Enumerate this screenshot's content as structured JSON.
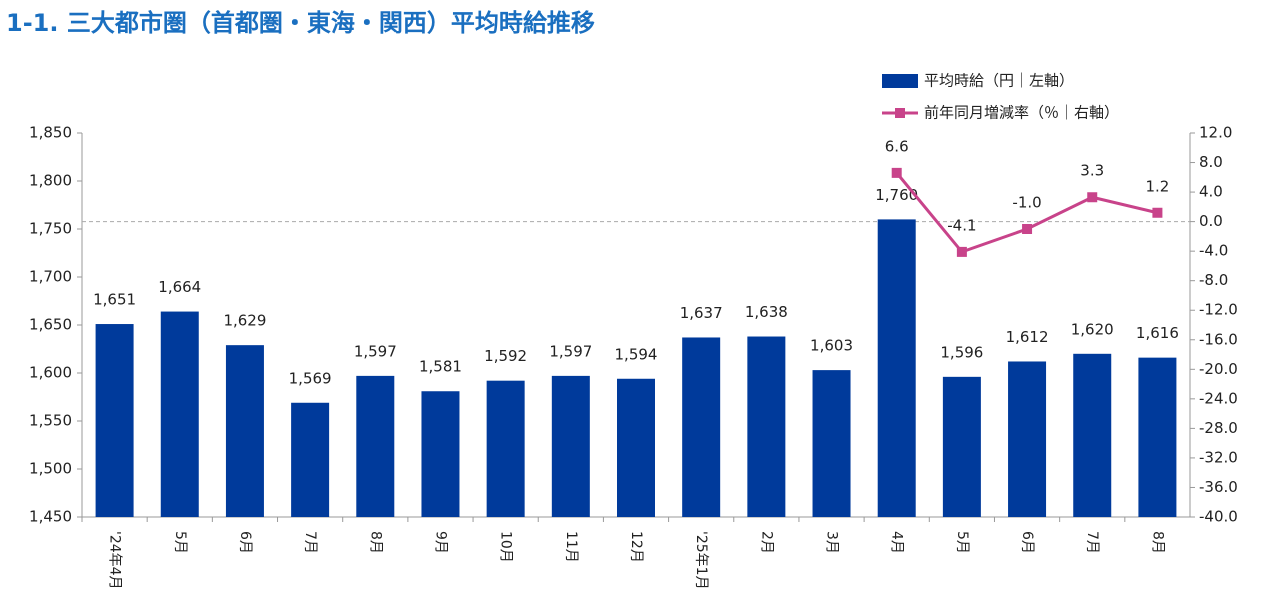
{
  "chart_data": {
    "type": "bar",
    "title": "1-1. 三大都市圏（首都圏・東海・関西）平均時給推移",
    "categories": [
      "'24年4月",
      "5月",
      "6月",
      "7月",
      "8月",
      "9月",
      "10月",
      "11月",
      "12月",
      "'25年1月",
      "2月",
      "3月",
      "4月",
      "5月",
      "6月",
      "7月",
      "8月"
    ],
    "series": [
      {
        "name": "平均時給（円｜左軸）",
        "type": "bar",
        "color": "#003a9b",
        "values": [
          1651,
          1664,
          1629,
          1569,
          1597,
          1581,
          1592,
          1597,
          1594,
          1637,
          1638,
          1603,
          1760,
          1596,
          1612,
          1620,
          1616
        ],
        "value_labels": [
          "1,651",
          "1,664",
          "1,629",
          "1,569",
          "1,597",
          "1,581",
          "1,592",
          "1,597",
          "1,594",
          "1,637",
          "1,638",
          "1,603",
          "1,760",
          "1,596",
          "1,612",
          "1,620",
          "1,616"
        ]
      },
      {
        "name": "前年同月増減率（％｜右軸）",
        "type": "line",
        "axis": "y2",
        "color": "#c8438a",
        "values": [
          null,
          null,
          null,
          null,
          null,
          null,
          null,
          null,
          null,
          null,
          null,
          null,
          6.6,
          -4.1,
          -1.0,
          3.3,
          1.2
        ],
        "value_labels": [
          null,
          null,
          null,
          null,
          null,
          null,
          null,
          null,
          null,
          null,
          null,
          null,
          "6.6",
          "-4.1",
          "-1.0",
          "3.3",
          "1.2"
        ]
      }
    ],
    "ylim": [
      1450,
      1850
    ],
    "yticks": [
      {
        "value": 1450,
        "label": "1,450"
      },
      {
        "value": 1500,
        "label": "1,500"
      },
      {
        "value": 1550,
        "label": "1,550"
      },
      {
        "value": 1600,
        "label": "1,600"
      },
      {
        "value": 1650,
        "label": "1,650"
      },
      {
        "value": 1700,
        "label": "1,700"
      },
      {
        "value": 1750,
        "label": "1,750"
      },
      {
        "value": 1800,
        "label": "1,800"
      },
      {
        "value": 1850,
        "label": "1,850"
      }
    ],
    "y2lim": [
      -40,
      12
    ],
    "y2ticks": [
      {
        "value": -40,
        "label": "-40.0"
      },
      {
        "value": -36,
        "label": "-36.0"
      },
      {
        "value": -32,
        "label": "-32.0"
      },
      {
        "value": -28,
        "label": "-28.0"
      },
      {
        "value": -24,
        "label": "-24.0"
      },
      {
        "value": -20,
        "label": "-20.0"
      },
      {
        "value": -16,
        "label": "-16.0"
      },
      {
        "value": -12,
        "label": "-12.0"
      },
      {
        "value": -8,
        "label": "-8.0"
      },
      {
        "value": -4,
        "label": "-4.0"
      },
      {
        "value": 0,
        "label": "0.0"
      },
      {
        "value": 4,
        "label": "4.0"
      },
      {
        "value": 8,
        "label": "8.0"
      },
      {
        "value": 12,
        "label": "12.0"
      }
    ],
    "legend": "top-right"
  }
}
